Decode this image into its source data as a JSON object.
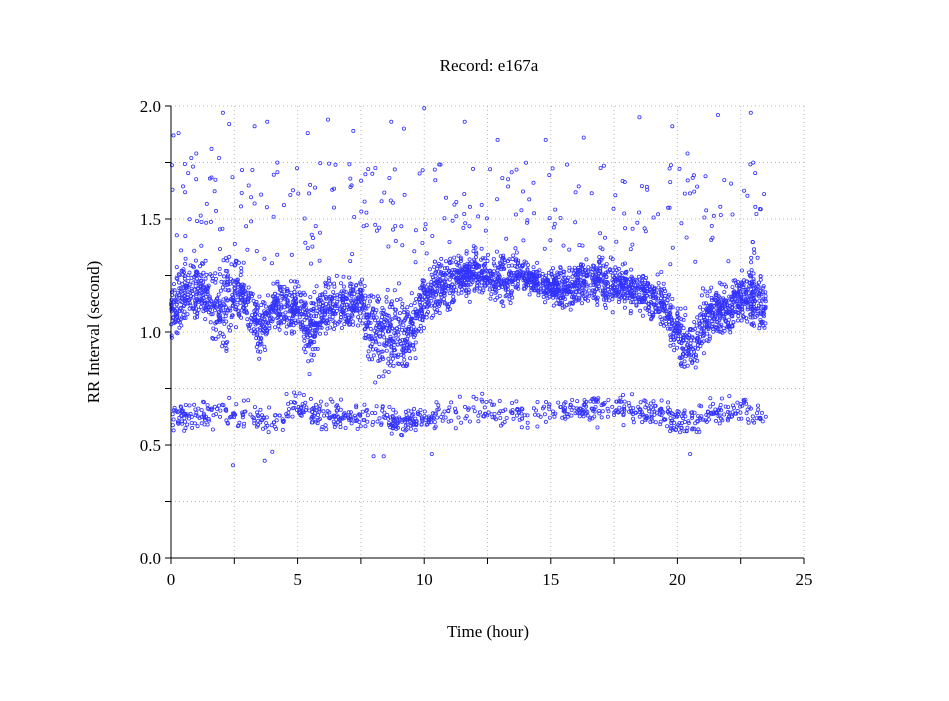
{
  "chart_data": {
    "type": "scatter",
    "title": "Record:  e167a",
    "xlabel": "Time (hour)",
    "ylabel": "RR Interval (second)",
    "xlim": [
      0,
      25
    ],
    "ylim": [
      0,
      2.0
    ],
    "x_ticks": [
      0,
      5,
      10,
      15,
      20,
      25
    ],
    "x_tick_labels": [
      "0",
      "5",
      "10",
      "15",
      "20",
      "25"
    ],
    "x_minor_ticks": [
      2.5,
      7.5,
      12.5,
      17.5,
      22.5
    ],
    "y_ticks": [
      0.0,
      0.5,
      1.0,
      1.5,
      2.0
    ],
    "y_tick_labels": [
      "0.0",
      "0.5",
      "1.0",
      "1.5",
      "2.0"
    ],
    "y_minor_ticks": [
      0.25,
      0.75,
      1.25,
      1.75
    ],
    "grid": true,
    "marker": "open-circle",
    "color": "#3333ff",
    "note_data": "Dense beat-by-beat RR series summarized as band centers/spreads per hour plus individual outliers",
    "main_band": {
      "hours": [
        0,
        0.5,
        1,
        1.5,
        2,
        2.5,
        3,
        3.5,
        4,
        4.5,
        5,
        5.5,
        6,
        6.5,
        7,
        7.5,
        8,
        8.5,
        9,
        9.5,
        10,
        10.5,
        11,
        11.5,
        12,
        12.5,
        13,
        13.5,
        14,
        14.5,
        15,
        15.5,
        16,
        16.5,
        17,
        17.5,
        18,
        18.5,
        19,
        19.5,
        20,
        20.5,
        21,
        21.5,
        22,
        22.5,
        23,
        23.5
      ],
      "center": [
        1.1,
        1.17,
        1.2,
        1.15,
        1.1,
        1.2,
        1.12,
        1.0,
        1.1,
        1.12,
        1.1,
        1.02,
        1.1,
        1.12,
        1.12,
        1.15,
        1.0,
        1.0,
        1.0,
        1.0,
        1.15,
        1.2,
        1.22,
        1.25,
        1.25,
        1.25,
        1.22,
        1.25,
        1.25,
        1.22,
        1.2,
        1.2,
        1.2,
        1.22,
        1.25,
        1.2,
        1.2,
        1.18,
        1.15,
        1.12,
        1.0,
        0.92,
        1.05,
        1.1,
        1.1,
        1.15,
        1.15,
        1.1
      ],
      "spread": [
        0.12,
        0.12,
        0.12,
        0.1,
        0.2,
        0.15,
        0.1,
        0.12,
        0.08,
        0.1,
        0.1,
        0.15,
        0.1,
        0.1,
        0.1,
        0.12,
        0.15,
        0.15,
        0.15,
        0.12,
        0.1,
        0.1,
        0.1,
        0.08,
        0.08,
        0.08,
        0.1,
        0.1,
        0.06,
        0.06,
        0.06,
        0.08,
        0.08,
        0.08,
        0.1,
        0.08,
        0.08,
        0.08,
        0.08,
        0.1,
        0.12,
        0.12,
        0.12,
        0.1,
        0.1,
        0.1,
        0.12,
        0.12
      ]
    },
    "lower_band": {
      "hours": [
        0,
        1,
        2,
        3,
        4,
        5,
        6,
        7,
        8,
        9,
        10,
        11,
        12,
        13,
        14,
        15,
        16,
        17,
        18,
        19,
        20,
        21,
        22,
        23,
        23.5
      ],
      "center": [
        0.63,
        0.62,
        0.64,
        0.63,
        0.6,
        0.68,
        0.64,
        0.63,
        0.64,
        0.6,
        0.62,
        0.64,
        0.66,
        0.64,
        0.65,
        0.65,
        0.66,
        0.66,
        0.66,
        0.65,
        0.6,
        0.62,
        0.65,
        0.65,
        0.62
      ],
      "density": [
        0.9,
        0.7,
        0.5,
        0.5,
        0.6,
        0.8,
        0.8,
        0.6,
        0.6,
        1.0,
        0.8,
        0.4,
        0.4,
        0.5,
        0.3,
        0.4,
        0.8,
        0.8,
        0.7,
        0.7,
        0.9,
        0.8,
        0.6,
        0.6,
        0.5
      ]
    },
    "outliers": [
      {
        "x": 0.1,
        "y": 1.87
      },
      {
        "x": 0.3,
        "y": 1.88
      },
      {
        "x": 0.8,
        "y": 1.77
      },
      {
        "x": 1.0,
        "y": 1.79
      },
      {
        "x": 1.6,
        "y": 1.81
      },
      {
        "x": 1.9,
        "y": 1.77
      },
      {
        "x": 2.05,
        "y": 1.97
      },
      {
        "x": 2.3,
        "y": 1.92
      },
      {
        "x": 3.3,
        "y": 1.91
      },
      {
        "x": 3.8,
        "y": 1.93
      },
      {
        "x": 5.4,
        "y": 1.88
      },
      {
        "x": 6.2,
        "y": 1.94
      },
      {
        "x": 7.2,
        "y": 1.89
      },
      {
        "x": 8.7,
        "y": 1.93
      },
      {
        "x": 9.2,
        "y": 1.9
      },
      {
        "x": 10.0,
        "y": 1.99
      },
      {
        "x": 11.6,
        "y": 1.93
      },
      {
        "x": 12.9,
        "y": 1.85
      },
      {
        "x": 14.8,
        "y": 1.85
      },
      {
        "x": 16.3,
        "y": 1.86
      },
      {
        "x": 18.5,
        "y": 1.95
      },
      {
        "x": 19.8,
        "y": 1.91
      },
      {
        "x": 20.4,
        "y": 1.79
      },
      {
        "x": 21.6,
        "y": 1.96
      },
      {
        "x": 22.9,
        "y": 1.97
      },
      {
        "x": 2.45,
        "y": 0.41
      },
      {
        "x": 3.7,
        "y": 0.43
      },
      {
        "x": 4.0,
        "y": 0.47
      },
      {
        "x": 8.0,
        "y": 0.45
      },
      {
        "x": 8.4,
        "y": 0.45
      },
      {
        "x": 10.3,
        "y": 0.46
      },
      {
        "x": 20.5,
        "y": 0.46
      }
    ]
  }
}
